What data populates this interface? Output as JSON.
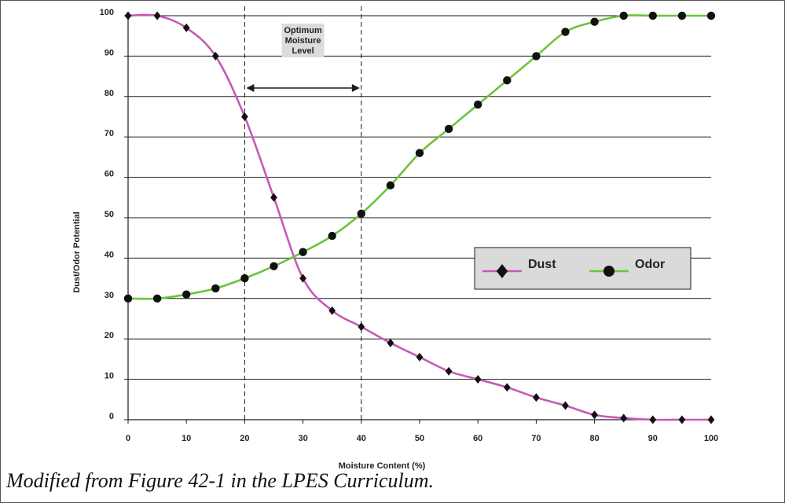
{
  "chart_data": {
    "type": "line",
    "title": "",
    "xlabel": "Moisture Content (%)",
    "ylabel": "Dust/Odor Potential",
    "xlim": [
      0,
      100
    ],
    "ylim": [
      0,
      100
    ],
    "xticks": [
      0,
      10,
      20,
      30,
      40,
      50,
      60,
      70,
      80,
      90,
      100
    ],
    "yticks": [
      0,
      10,
      20,
      30,
      40,
      50,
      60,
      70,
      80,
      90,
      100
    ],
    "grid": "horizontal",
    "legend_position": "center-right",
    "series": [
      {
        "name": "Dust",
        "color": "#c55ab5",
        "marker": "diamond",
        "x": [
          0,
          5,
          10,
          15,
          20,
          25,
          30,
          35,
          40,
          45,
          50,
          55,
          60,
          65,
          70,
          75,
          80,
          85,
          90,
          95,
          100
        ],
        "y": [
          100,
          100,
          97,
          90,
          75,
          55,
          35,
          27,
          23,
          19,
          15.5,
          12,
          10,
          8,
          5.5,
          3.5,
          1.2,
          0.4,
          0,
          0,
          0
        ]
      },
      {
        "name": "Odor",
        "color": "#6cc43a",
        "marker": "circle",
        "x": [
          0,
          5,
          10,
          15,
          20,
          25,
          30,
          35,
          40,
          45,
          50,
          55,
          60,
          65,
          70,
          75,
          80,
          85,
          90,
          95,
          100
        ],
        "y": [
          30,
          30,
          31,
          32.5,
          35,
          38,
          41.5,
          45.5,
          51,
          58,
          66,
          72,
          78,
          84,
          90,
          96,
          98.5,
          100,
          100,
          100,
          100
        ]
      }
    ],
    "annotations": {
      "optimum_label": [
        "Optimum",
        "Moisture",
        "Level"
      ],
      "optimum_range": [
        20,
        40
      ]
    }
  },
  "caption": "Modified from Figure 42-1 in the LPES Curriculum."
}
